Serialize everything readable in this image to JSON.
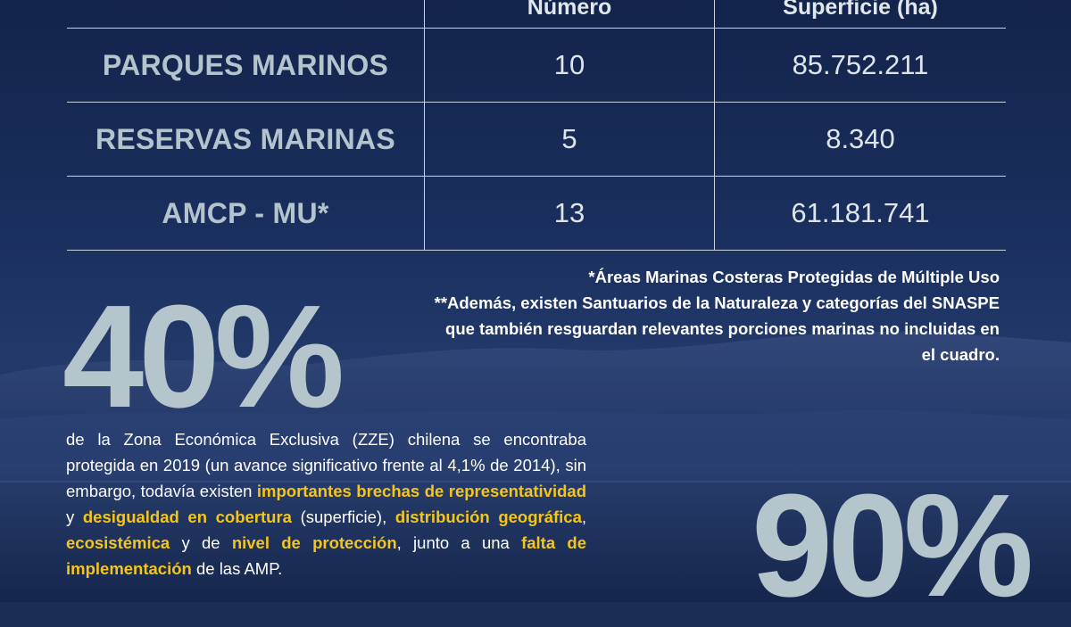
{
  "table": {
    "headers": [
      "",
      "Número",
      "Superficie (ha)"
    ],
    "rows": [
      {
        "label": "PARQUES MARINOS",
        "number": "10",
        "surface": "85.752.211"
      },
      {
        "label": "RESERVAS MARINAS",
        "number": "5",
        "surface": "8.340"
      },
      {
        "label": "AMCP - MU*",
        "number": "13",
        "surface": "61.181.741"
      }
    ]
  },
  "notes": {
    "note1": "*Áreas Marinas Costeras Protegidas de Múltiple Uso",
    "note2": "**Además, existen Santuarios de la Naturaleza y categorías del SNASPE que también resguardan relevantes porciones marinas no incluidas en el cuadro."
  },
  "stat1": {
    "value": "40%"
  },
  "stat2": {
    "value": "90%"
  },
  "paragraph": {
    "t1": "de la Zona Económica Exclusiva (ZZE) chilena se encontraba protegida en 2019 (un avance significativo frente al 4,1% de 2014), sin embargo, todavía existen ",
    "h1": "importantes brechas de representatividad",
    "t2": " y ",
    "h2": "desigualdad en cobertura",
    "t3": " (superficie), ",
    "h3": "distribución geográfica",
    "t4": ", ",
    "h4": "ecosistémica",
    "t5": " y de ",
    "h5": "nivel de protección",
    "t6": ", junto a una ",
    "h6": "falta de implementación",
    "t7": " de las AMP."
  },
  "colors": {
    "background": "#1b2d57",
    "highlight": "#f5c518",
    "big_number": "#b5c5cc",
    "row_label": "#b4c4cc"
  }
}
